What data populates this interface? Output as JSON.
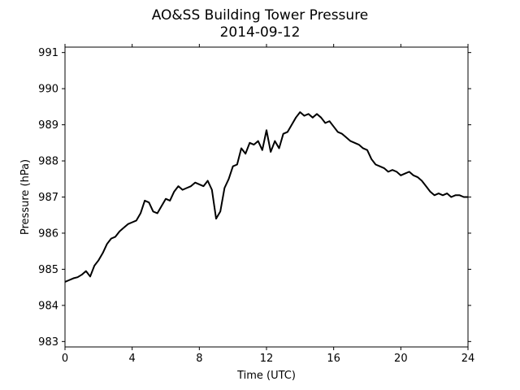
{
  "chart_data": {
    "type": "line",
    "title": "AO&SS Building Tower Pressure",
    "subtitle": "2014-09-12",
    "xlabel": "Time (UTC)",
    "ylabel": "Pressure (hPa)",
    "xlim": [
      0,
      24
    ],
    "ylim": [
      982.85,
      991.15
    ],
    "xticks": [
      0,
      4,
      8,
      12,
      16,
      20,
      24
    ],
    "yticks": [
      983,
      984,
      985,
      986,
      987,
      988,
      989,
      990,
      991
    ],
    "grid": false,
    "legend": "none",
    "series": [
      {
        "color": "#000000",
        "x": [
          0,
          0.25,
          0.5,
          0.75,
          1.0,
          1.25,
          1.5,
          1.75,
          2.0,
          2.25,
          2.5,
          2.75,
          3.0,
          3.25,
          3.5,
          3.75,
          4.0,
          4.25,
          4.5,
          4.75,
          5.0,
          5.25,
          5.5,
          5.75,
          6.0,
          6.25,
          6.5,
          6.75,
          7.0,
          7.25,
          7.5,
          7.75,
          8.0,
          8.25,
          8.5,
          8.75,
          9.0,
          9.25,
          9.5,
          9.75,
          10.0,
          10.25,
          10.5,
          10.75,
          11.0,
          11.25,
          11.5,
          11.75,
          12.0,
          12.25,
          12.5,
          12.75,
          13.0,
          13.25,
          13.5,
          13.75,
          14.0,
          14.25,
          14.5,
          14.75,
          15.0,
          15.25,
          15.5,
          15.75,
          16.0,
          16.25,
          16.5,
          16.75,
          17.0,
          17.25,
          17.5,
          17.75,
          18.0,
          18.25,
          18.5,
          18.75,
          19.0,
          19.25,
          19.5,
          19.75,
          20.0,
          20.25,
          20.5,
          20.75,
          21.0,
          21.25,
          21.5,
          21.75,
          22.0,
          22.25,
          22.5,
          22.75,
          23.0,
          23.25,
          23.5,
          23.75,
          24.0
        ],
        "values": [
          984.65,
          984.7,
          984.75,
          984.78,
          984.85,
          984.95,
          984.8,
          985.1,
          985.25,
          985.45,
          985.7,
          985.85,
          985.9,
          986.05,
          986.15,
          986.25,
          986.3,
          986.35,
          986.55,
          986.9,
          986.85,
          986.6,
          986.55,
          986.75,
          986.95,
          986.9,
          987.15,
          987.3,
          987.2,
          987.25,
          987.3,
          987.4,
          987.35,
          987.3,
          987.45,
          987.2,
          986.4,
          986.6,
          987.25,
          987.5,
          987.85,
          987.9,
          988.35,
          988.2,
          988.5,
          988.45,
          988.55,
          988.3,
          988.85,
          988.25,
          988.55,
          988.35,
          988.75,
          988.8,
          989.0,
          989.2,
          989.35,
          989.25,
          989.3,
          989.2,
          989.3,
          989.2,
          989.05,
          989.1,
          988.95,
          988.8,
          988.75,
          988.65,
          988.55,
          988.5,
          988.45,
          988.35,
          988.3,
          988.05,
          987.9,
          987.85,
          987.8,
          987.7,
          987.75,
          987.7,
          987.6,
          987.65,
          987.7,
          987.6,
          987.55,
          987.45,
          987.3,
          987.15,
          987.05,
          987.1,
          987.05,
          987.1,
          987.0,
          987.05,
          987.05,
          987.0,
          987.0
        ]
      }
    ]
  }
}
